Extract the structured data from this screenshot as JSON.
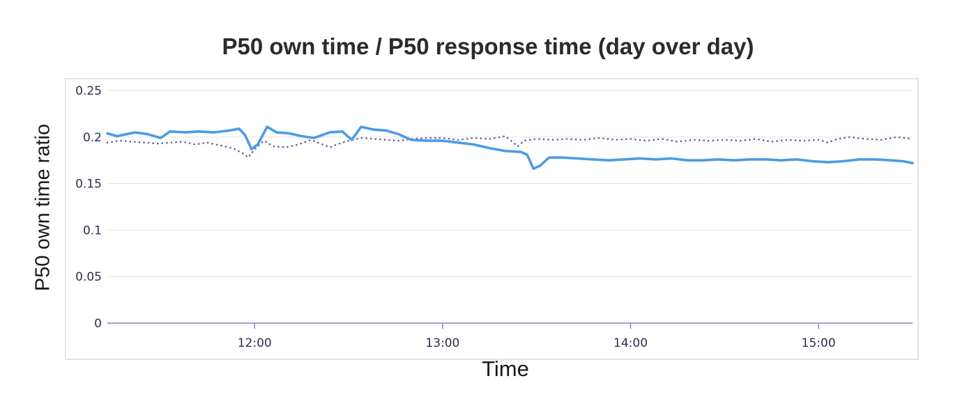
{
  "chart_data": {
    "type": "line",
    "title": "P50 own time / P50 response time (day over day)",
    "xlabel": "Time",
    "ylabel": "P50 own time ratio",
    "ylim": [
      0,
      0.25
    ],
    "x_ticks": [
      "12:00",
      "13:00",
      "14:00",
      "15:00"
    ],
    "y_ticks": [
      "0",
      "0.05",
      "0.1",
      "0.15",
      "0.2",
      "0.25"
    ],
    "xlim": [
      "11:13",
      "15:30"
    ],
    "grid": true,
    "legend": "none",
    "series": [
      {
        "style": "solid",
        "color": "#4a9be6",
        "points": [
          [
            "11:13",
            0.204
          ],
          [
            "11:16",
            0.201
          ],
          [
            "11:19",
            0.203
          ],
          [
            "11:22",
            0.205
          ],
          [
            "11:26",
            0.203
          ],
          [
            "11:30",
            0.199
          ],
          [
            "11:33",
            0.206
          ],
          [
            "11:38",
            0.205
          ],
          [
            "11:42",
            0.206
          ],
          [
            "11:47",
            0.205
          ],
          [
            "11:52",
            0.207
          ],
          [
            "11:55",
            0.209
          ],
          [
            "11:57",
            0.202
          ],
          [
            "11:59",
            0.187
          ],
          [
            "12:01",
            0.192
          ],
          [
            "12:04",
            0.211
          ],
          [
            "12:07",
            0.205
          ],
          [
            "12:11",
            0.204
          ],
          [
            "12:15",
            0.201
          ],
          [
            "12:19",
            0.199
          ],
          [
            "12:24",
            0.205
          ],
          [
            "12:28",
            0.206
          ],
          [
            "12:31",
            0.197
          ],
          [
            "12:34",
            0.211
          ],
          [
            "12:38",
            0.208
          ],
          [
            "12:42",
            0.207
          ],
          [
            "12:46",
            0.203
          ],
          [
            "12:50",
            0.197
          ],
          [
            "12:55",
            0.196
          ],
          [
            "13:00",
            0.196
          ],
          [
            "13:05",
            0.194
          ],
          [
            "13:10",
            0.192
          ],
          [
            "13:15",
            0.188
          ],
          [
            "13:20",
            0.185
          ],
          [
            "13:25",
            0.184
          ],
          [
            "13:27",
            0.181
          ],
          [
            "13:29",
            0.166
          ],
          [
            "13:31",
            0.169
          ],
          [
            "13:34",
            0.178
          ],
          [
            "13:38",
            0.178
          ],
          [
            "13:43",
            0.177
          ],
          [
            "13:48",
            0.176
          ],
          [
            "13:53",
            0.175
          ],
          [
            "13:58",
            0.176
          ],
          [
            "14:03",
            0.177
          ],
          [
            "14:08",
            0.176
          ],
          [
            "14:13",
            0.177
          ],
          [
            "14:18",
            0.175
          ],
          [
            "14:23",
            0.175
          ],
          [
            "14:28",
            0.176
          ],
          [
            "14:33",
            0.175
          ],
          [
            "14:38",
            0.176
          ],
          [
            "14:43",
            0.176
          ],
          [
            "14:48",
            0.175
          ],
          [
            "14:53",
            0.176
          ],
          [
            "14:58",
            0.174
          ],
          [
            "15:03",
            0.173
          ],
          [
            "15:08",
            0.174
          ],
          [
            "15:13",
            0.176
          ],
          [
            "15:18",
            0.176
          ],
          [
            "15:23",
            0.175
          ],
          [
            "15:27",
            0.174
          ],
          [
            "15:30",
            0.172
          ]
        ]
      },
      {
        "style": "dotted",
        "color": "#5a5f96",
        "points": [
          [
            "11:13",
            0.194
          ],
          [
            "11:17",
            0.196
          ],
          [
            "11:21",
            0.195
          ],
          [
            "11:25",
            0.194
          ],
          [
            "11:29",
            0.193
          ],
          [
            "11:33",
            0.194
          ],
          [
            "11:37",
            0.195
          ],
          [
            "11:41",
            0.192
          ],
          [
            "11:45",
            0.194
          ],
          [
            "11:49",
            0.191
          ],
          [
            "11:53",
            0.188
          ],
          [
            "11:56",
            0.183
          ],
          [
            "11:58",
            0.178
          ],
          [
            "12:00",
            0.187
          ],
          [
            "12:03",
            0.196
          ],
          [
            "12:06",
            0.19
          ],
          [
            "12:10",
            0.189
          ],
          [
            "12:14",
            0.192
          ],
          [
            "12:18",
            0.197
          ],
          [
            "12:21",
            0.193
          ],
          [
            "12:24",
            0.189
          ],
          [
            "12:27",
            0.193
          ],
          [
            "12:30",
            0.196
          ],
          [
            "12:34",
            0.199
          ],
          [
            "12:38",
            0.198
          ],
          [
            "12:42",
            0.197
          ],
          [
            "12:46",
            0.196
          ],
          [
            "12:50",
            0.198
          ],
          [
            "12:55",
            0.199
          ],
          [
            "13:00",
            0.199
          ],
          [
            "13:05",
            0.197
          ],
          [
            "13:10",
            0.199
          ],
          [
            "13:15",
            0.198
          ],
          [
            "13:20",
            0.201
          ],
          [
            "13:24",
            0.19
          ],
          [
            "13:26",
            0.196
          ],
          [
            "13:30",
            0.198
          ],
          [
            "13:35",
            0.197
          ],
          [
            "13:40",
            0.198
          ],
          [
            "13:45",
            0.197
          ],
          [
            "13:50",
            0.199
          ],
          [
            "13:55",
            0.197
          ],
          [
            "14:00",
            0.198
          ],
          [
            "14:05",
            0.196
          ],
          [
            "14:10",
            0.198
          ],
          [
            "14:15",
            0.195
          ],
          [
            "14:20",
            0.197
          ],
          [
            "14:25",
            0.196
          ],
          [
            "14:30",
            0.197
          ],
          [
            "14:35",
            0.196
          ],
          [
            "14:40",
            0.198
          ],
          [
            "14:45",
            0.195
          ],
          [
            "14:50",
            0.197
          ],
          [
            "14:55",
            0.196
          ],
          [
            "15:00",
            0.197
          ],
          [
            "15:03",
            0.194
          ],
          [
            "15:06",
            0.198
          ],
          [
            "15:10",
            0.2
          ],
          [
            "15:15",
            0.198
          ],
          [
            "15:20",
            0.197
          ],
          [
            "15:25",
            0.2
          ],
          [
            "15:30",
            0.198
          ]
        ]
      }
    ]
  }
}
